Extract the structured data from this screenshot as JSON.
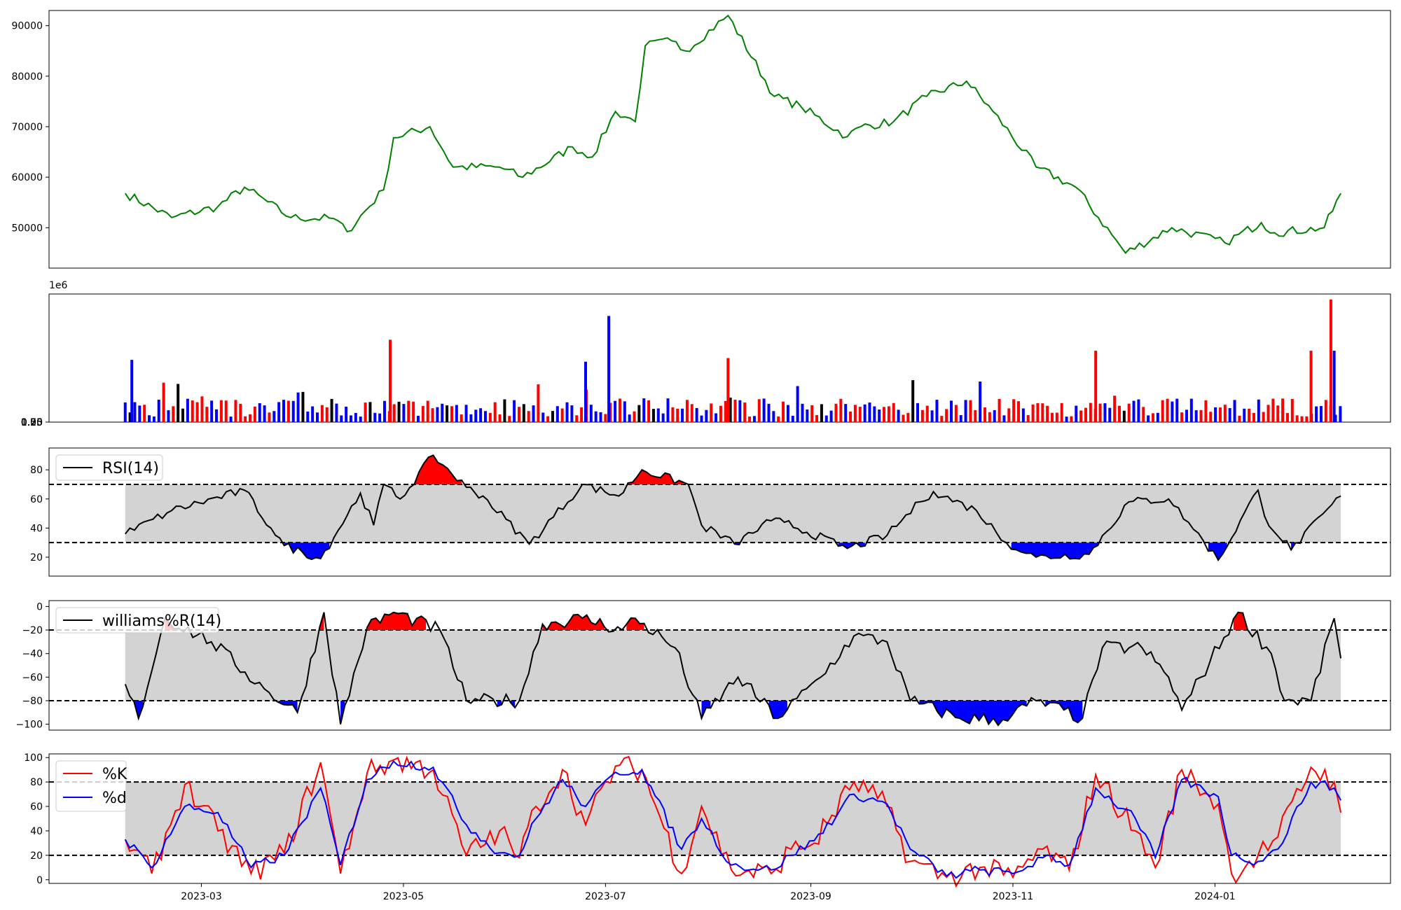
{
  "colors": {
    "price": "#008000",
    "up": "#ff0000",
    "down": "#0000ff",
    "neutral": "#000000",
    "band": "#d3d3d3",
    "line": "#000000",
    "k": "#ff0000",
    "d": "#0000ff"
  },
  "x_ticks": [
    "2023-03",
    "2023-05",
    "2023-07",
    "2023-09",
    "2023-11",
    "2024-01"
  ],
  "chart_data": [
    {
      "type": "line",
      "panel": "price",
      "xlim": [
        "2023-01-14",
        "2024-02-23"
      ],
      "ylim": [
        42000,
        93000
      ],
      "y_ticks": [
        "50000",
        "60000",
        "70000",
        "80000",
        "90000"
      ],
      "grid": false,
      "series": [
        {
          "x": [
            "2023-02-06",
            "2023-02-20",
            "2023-03-06",
            "2023-03-14",
            "2023-03-28",
            "2023-04-10",
            "2023-04-14",
            "2023-04-25",
            "2023-04-28",
            "2023-05-09",
            "2023-05-16",
            "2023-05-30",
            "2023-06-06",
            "2023-06-21",
            "2023-06-27",
            "2023-07-04",
            "2023-07-10",
            "2023-07-13",
            "2023-07-21",
            "2023-07-25",
            "2023-08-07",
            "2023-08-21",
            "2023-08-29",
            "2023-09-12",
            "2023-09-16",
            "2023-09-26",
            "2023-10-06",
            "2023-10-18",
            "2023-10-26",
            "2023-11-08",
            "2023-11-20",
            "2023-12-05",
            "2023-12-19",
            "2024-01-04",
            "2024-01-15",
            "2024-01-19",
            "2024-02-03",
            "2024-02-08"
          ],
          "y": [
            56800,
            52000,
            54200,
            58000,
            52000,
            51800,
            49200,
            57500,
            67800,
            70000,
            62000,
            62000,
            60000,
            66000,
            64000,
            73000,
            71000,
            86000,
            87000,
            85000,
            92000,
            76000,
            74000,
            68000,
            70000,
            71000,
            76000,
            79000,
            73000,
            62000,
            58000,
            45000,
            50000,
            47000,
            51000,
            49000,
            50000,
            56800
          ]
        }
      ]
    },
    {
      "type": "bar",
      "panel": "volume",
      "ylim": [
        0,
        1400000
      ],
      "y_ticks": [
        "0.00",
        "0.25",
        "0.50",
        "0.75",
        "1.00",
        "1.25"
      ],
      "offset_label": "1e6",
      "highlights": [
        {
          "date": "2023-02-08",
          "value": 680000,
          "color": "blue"
        },
        {
          "date": "2023-04-27",
          "value": 900000,
          "color": "red"
        },
        {
          "date": "2023-07-02",
          "value": 1160000,
          "color": "blue"
        },
        {
          "date": "2023-06-25",
          "value": 660000,
          "color": "blue"
        },
        {
          "date": "2023-08-07",
          "value": 700000,
          "color": "red"
        },
        {
          "date": "2023-11-26",
          "value": 780000,
          "color": "red"
        },
        {
          "date": "2024-01-30",
          "value": 780000,
          "color": "red"
        },
        {
          "date": "2024-02-05",
          "value": 1340000,
          "color": "red"
        },
        {
          "date": "2024-02-06",
          "value": 780000,
          "color": "blue"
        }
      ]
    },
    {
      "type": "line",
      "panel": "rsi",
      "title": "RSI(14)",
      "ylim": [
        7,
        95
      ],
      "y_ticks": [
        "20",
        "40",
        "60",
        "80"
      ],
      "upper": 70,
      "lower": 30,
      "series": [
        {
          "name": "RSI(14)",
          "x": [
            "2023-02-06",
            "2023-02-20",
            "2023-03-14",
            "2023-03-22",
            "2023-03-26",
            "2023-04-06",
            "2023-04-18",
            "2023-04-22",
            "2023-04-25",
            "2023-04-30",
            "2023-05-10",
            "2023-05-20",
            "2023-05-25",
            "2023-06-08",
            "2023-06-24",
            "2023-07-05",
            "2023-07-12",
            "2023-07-26",
            "2023-07-30",
            "2023-08-09",
            "2023-08-20",
            "2023-08-24",
            "2023-09-12",
            "2023-09-24",
            "2023-10-04",
            "2023-10-08",
            "2023-10-21",
            "2023-10-30",
            "2023-11-08",
            "2023-11-24",
            "2023-12-06",
            "2023-12-18",
            "2023-12-24",
            "2024-01-02",
            "2024-01-14",
            "2024-01-16",
            "2024-01-24",
            "2024-02-08"
          ],
          "y": [
            36,
            52,
            66,
            40,
            28,
            19,
            64,
            42,
            70,
            60,
            90,
            68,
            62,
            29,
            70,
            62,
            80,
            70,
            42,
            29,
            45,
            44,
            26,
            35,
            58,
            65,
            52,
            30,
            20,
            22,
            58,
            60,
            44,
            18,
            66,
            48,
            25,
            62
          ]
        }
      ]
    },
    {
      "type": "line",
      "panel": "williams",
      "title": "williams%R(14)",
      "ylim": [
        -105,
        5
      ],
      "y_ticks": [
        "−100",
        "−80",
        "−60",
        "−40",
        "−20",
        "0"
      ],
      "upper": -20,
      "lower": -80,
      "series": [
        {
          "name": "williams%R(14)",
          "x": [
            "2023-02-06",
            "2023-02-10",
            "2023-02-18",
            "2023-03-04",
            "2023-03-20",
            "2023-03-30",
            "2023-04-07",
            "2023-04-12",
            "2023-04-20",
            "2023-04-28",
            "2023-05-12",
            "2023-05-20",
            "2023-05-24",
            "2023-06-05",
            "2023-06-12",
            "2023-06-24",
            "2023-07-06",
            "2023-07-10",
            "2023-07-22",
            "2023-07-30",
            "2023-08-10",
            "2023-08-22",
            "2023-09-04",
            "2023-09-14",
            "2023-09-24",
            "2023-10-01",
            "2023-10-16",
            "2023-10-29",
            "2023-11-08",
            "2023-11-22",
            "2023-11-28",
            "2023-12-10",
            "2023-12-18",
            "2023-12-22",
            "2024-01-08",
            "2024-01-18",
            "2024-01-22",
            "2024-01-30",
            "2024-02-06",
            "2024-02-08"
          ],
          "y": [
            -66,
            -95,
            -10,
            -30,
            -70,
            -90,
            -5,
            -100,
            -18,
            -5,
            -20,
            -80,
            -80,
            -80,
            -15,
            -10,
            -20,
            -10,
            -35,
            -95,
            -60,
            -95,
            -60,
            -25,
            -30,
            -80,
            -95,
            -96,
            -80,
            -95,
            -35,
            -35,
            -60,
            -88,
            -5,
            -40,
            -80,
            -80,
            -10,
            -44
          ]
        }
      ]
    },
    {
      "type": "line",
      "panel": "stochastic",
      "ylim": [
        -3,
        103
      ],
      "y_ticks": [
        "0",
        "20",
        "40",
        "60",
        "80",
        "100"
      ],
      "upper": 80,
      "lower": 20,
      "series": [
        {
          "name": "%K",
          "x": [
            "2023-02-06",
            "2023-02-14",
            "2023-02-24",
            "2023-03-06",
            "2023-03-16",
            "2023-03-26",
            "2023-04-06",
            "2023-04-12",
            "2023-04-20",
            "2023-04-28",
            "2023-05-10",
            "2023-05-20",
            "2023-05-30",
            "2023-06-05",
            "2023-06-10",
            "2023-06-18",
            "2023-06-25",
            "2023-07-04",
            "2023-07-12",
            "2023-07-24",
            "2023-07-30",
            "2023-08-08",
            "2023-08-20",
            "2023-08-26",
            "2023-09-02",
            "2023-09-14",
            "2023-09-24",
            "2023-10-01",
            "2023-10-12",
            "2023-10-22",
            "2023-11-01",
            "2023-11-10",
            "2023-11-18",
            "2023-11-26",
            "2023-12-08",
            "2023-12-14",
            "2023-12-22",
            "2024-01-02",
            "2024-01-06",
            "2024-01-14",
            "2024-01-20",
            "2024-01-30",
            "2024-02-06",
            "2024-02-08"
          ],
          "y": [
            33,
            5,
            78,
            40,
            5,
            22,
            96,
            5,
            87,
            98,
            90,
            20,
            40,
            18,
            60,
            90,
            45,
            93,
            90,
            5,
            60,
            8,
            5,
            25,
            30,
            80,
            60,
            15,
            2,
            10,
            2,
            25,
            8,
            86,
            40,
            10,
            90,
            62,
            5,
            20,
            35,
            92,
            80,
            55
          ]
        },
        {
          "name": "%d",
          "x": [
            "2023-02-06",
            "2023-02-14",
            "2023-02-24",
            "2023-03-06",
            "2023-03-16",
            "2023-03-26",
            "2023-04-06",
            "2023-04-12",
            "2023-04-20",
            "2023-04-28",
            "2023-05-10",
            "2023-05-20",
            "2023-05-30",
            "2023-06-05",
            "2023-06-10",
            "2023-06-18",
            "2023-06-25",
            "2023-07-04",
            "2023-07-12",
            "2023-07-24",
            "2023-07-30",
            "2023-08-08",
            "2023-08-20",
            "2023-08-26",
            "2023-09-02",
            "2023-09-14",
            "2023-09-24",
            "2023-10-01",
            "2023-10-12",
            "2023-10-22",
            "2023-11-01",
            "2023-11-10",
            "2023-11-18",
            "2023-11-26",
            "2023-12-08",
            "2023-12-14",
            "2023-12-22",
            "2024-01-02",
            "2024-01-06",
            "2024-01-14",
            "2024-01-20",
            "2024-01-30",
            "2024-02-06",
            "2024-02-08"
          ],
          "y": [
            33,
            10,
            60,
            55,
            10,
            20,
            75,
            12,
            82,
            97,
            92,
            45,
            22,
            20,
            50,
            82,
            60,
            88,
            90,
            25,
            50,
            12,
            8,
            20,
            32,
            70,
            62,
            25,
            3,
            8,
            5,
            18,
            12,
            75,
            50,
            18,
            82,
            68,
            20,
            15,
            25,
            80,
            75,
            65
          ]
        }
      ]
    }
  ]
}
